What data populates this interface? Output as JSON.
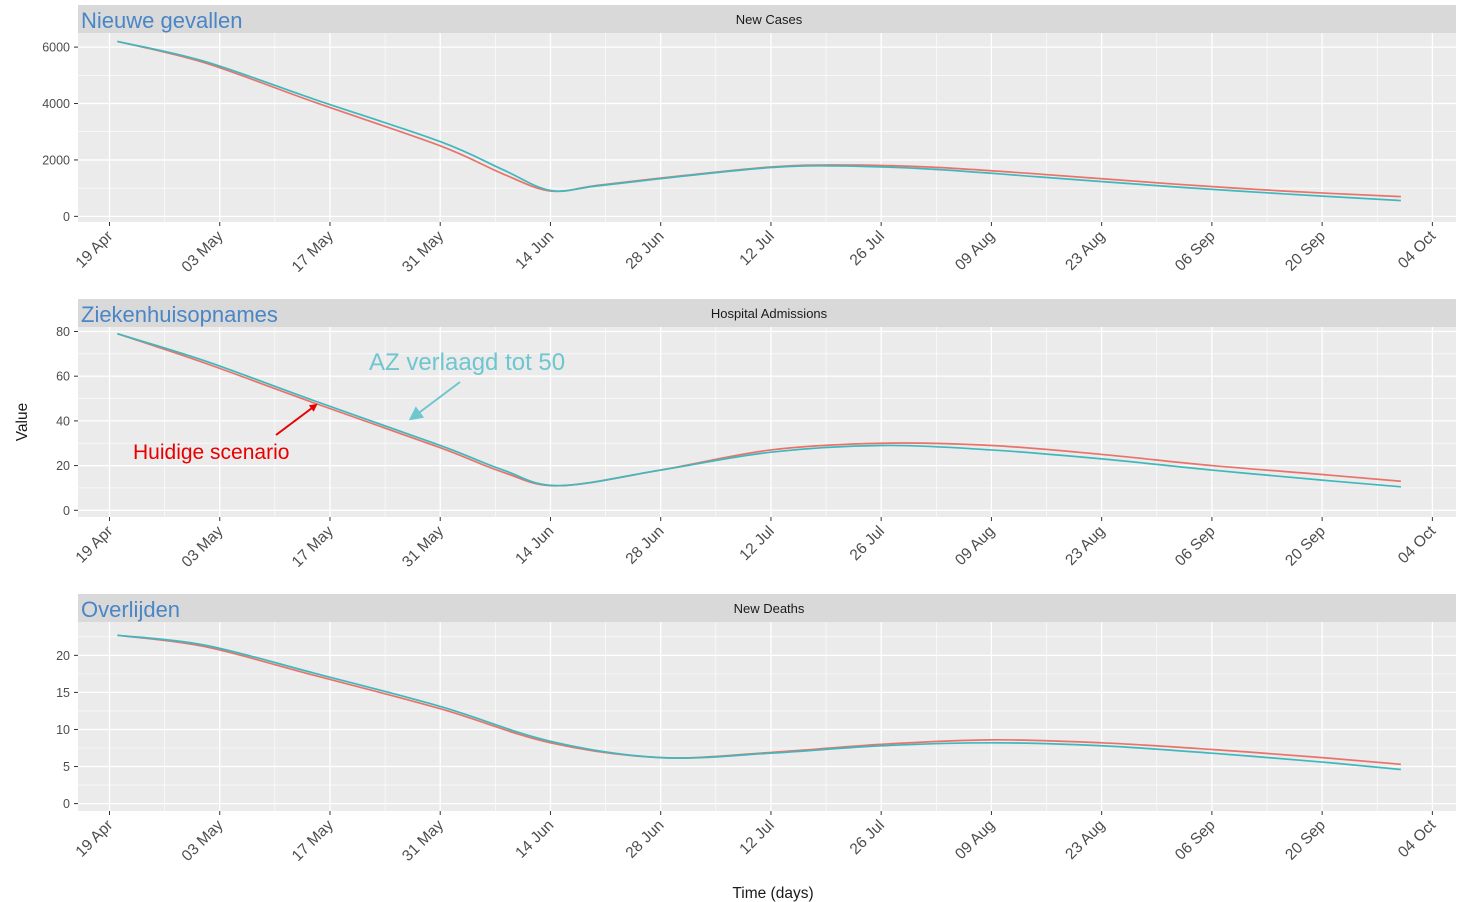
{
  "chart_data": [
    {
      "type": "line",
      "strip_title": "New Cases",
      "overlay_label": "Nieuwe gevallen",
      "ylim": [
        -200,
        6500
      ],
      "yticks": [
        0,
        2000,
        4000,
        6000
      ],
      "series": [
        {
          "x": [
            "2020-04-20",
            "2020-05-01",
            "2020-05-15",
            "2020-05-31",
            "2020-06-08",
            "2020-06-14",
            "2020-06-20",
            "2020-07-01",
            "2020-07-12",
            "2020-07-20",
            "2020-08-01",
            "2020-08-15",
            "2020-09-01",
            "2020-09-15",
            "2020-09-30"
          ],
          "values": [
            6200,
            5450,
            4050,
            2500,
            1500,
            900,
            1100,
            1450,
            1750,
            1820,
            1750,
            1500,
            1150,
            900,
            700
          ]
        },
        {
          "x": [
            "2020-04-20",
            "2020-05-01",
            "2020-05-15",
            "2020-05-31",
            "2020-06-08",
            "2020-06-14",
            "2020-06-20",
            "2020-07-01",
            "2020-07-12",
            "2020-07-20",
            "2020-08-01",
            "2020-08-15",
            "2020-09-01",
            "2020-09-15",
            "2020-09-30"
          ],
          "values": [
            6200,
            5500,
            4150,
            2650,
            1650,
            920,
            1080,
            1430,
            1730,
            1790,
            1680,
            1400,
            1050,
            800,
            560
          ]
        }
      ]
    },
    {
      "type": "line",
      "strip_title": "Hospital Admissions",
      "overlay_label": "Ziekenhuisopnames",
      "ylim": [
        -3,
        82
      ],
      "yticks": [
        0,
        20,
        40,
        60,
        80
      ],
      "series": [
        {
          "x": [
            "2020-04-20",
            "2020-05-01",
            "2020-05-15",
            "2020-05-31",
            "2020-06-08",
            "2020-06-15",
            "2020-06-28",
            "2020-07-12",
            "2020-07-26",
            "2020-08-09",
            "2020-08-23",
            "2020-09-06",
            "2020-09-20",
            "2020-09-30"
          ],
          "values": [
            79,
            66,
            48,
            28,
            17,
            11,
            18,
            27,
            30,
            29,
            25,
            20,
            16,
            13
          ]
        },
        {
          "x": [
            "2020-04-20",
            "2020-05-01",
            "2020-05-15",
            "2020-05-31",
            "2020-06-08",
            "2020-06-15",
            "2020-06-28",
            "2020-07-12",
            "2020-07-26",
            "2020-08-09",
            "2020-08-23",
            "2020-09-06",
            "2020-09-20",
            "2020-09-30"
          ],
          "values": [
            79,
            67,
            49,
            29,
            18,
            11,
            18,
            26,
            29,
            27,
            23,
            18,
            13.5,
            10.5
          ]
        }
      ]
    },
    {
      "type": "line",
      "strip_title": "New Deaths",
      "overlay_label": "Overlijden",
      "ylim": [
        -1,
        24.5
      ],
      "yticks": [
        0,
        5,
        10,
        15,
        20
      ],
      "series": [
        {
          "x": [
            "2020-04-20",
            "2020-05-01",
            "2020-05-15",
            "2020-05-31",
            "2020-06-14",
            "2020-06-28",
            "2020-07-12",
            "2020-07-26",
            "2020-08-09",
            "2020-08-23",
            "2020-09-06",
            "2020-09-20",
            "2020-09-30"
          ],
          "values": [
            22.7,
            21.2,
            17.3,
            12.8,
            8.2,
            6.2,
            6.9,
            8.0,
            8.6,
            8.2,
            7.3,
            6.2,
            5.3
          ]
        },
        {
          "x": [
            "2020-04-20",
            "2020-05-01",
            "2020-05-15",
            "2020-05-31",
            "2020-06-14",
            "2020-06-28",
            "2020-07-12",
            "2020-07-26",
            "2020-08-09",
            "2020-08-23",
            "2020-09-06",
            "2020-09-20",
            "2020-09-30"
          ],
          "values": [
            22.7,
            21.4,
            17.6,
            13.1,
            8.4,
            6.2,
            6.8,
            7.8,
            8.2,
            7.8,
            6.8,
            5.6,
            4.6
          ]
        }
      ]
    }
  ],
  "x_axis": {
    "ticks": [
      "2020-04-19",
      "2020-05-03",
      "2020-05-17",
      "2020-05-31",
      "2020-06-14",
      "2020-06-28",
      "2020-07-12",
      "2020-07-26",
      "2020-08-09",
      "2020-08-23",
      "2020-09-06",
      "2020-09-20",
      "2020-10-04"
    ],
    "tick_labels": [
      "19 Apr",
      "03 May",
      "17 May",
      "31 May",
      "14 Jun",
      "28 Jun",
      "12 Jul",
      "26 Jul",
      "09 Aug",
      "23 Aug",
      "06 Sep",
      "20 Sep",
      "04 Oct"
    ],
    "xlim": [
      "2020-04-15",
      "2020-10-07"
    ],
    "label": "Time (days)"
  },
  "y_axis_label": "Value",
  "annotations": {
    "red_label": "Huidige scenario",
    "teal_label": "AZ verlaagd tot 50"
  },
  "colors": {
    "series_red": "#E8736B",
    "series_teal": "#3FB8BD",
    "overlay_blue": "#4A86C5",
    "teal_annotation": "#6EC6CF",
    "red_annotation": "#E80000",
    "panel_bg": "#EBEBEB",
    "strip_bg": "#D9D9D9"
  }
}
